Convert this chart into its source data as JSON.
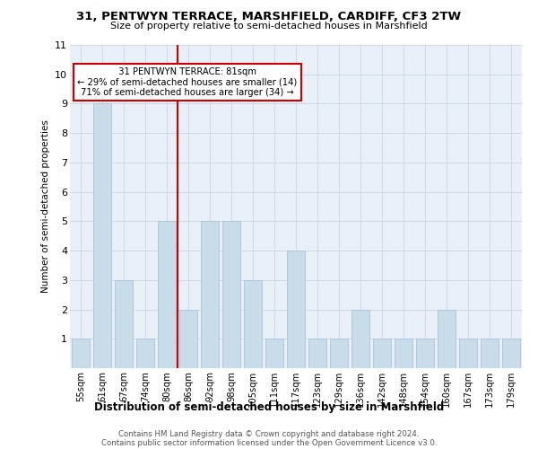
{
  "title1": "31, PENTWYN TERRACE, MARSHFIELD, CARDIFF, CF3 2TW",
  "title2": "Size of property relative to semi-detached houses in Marshfield",
  "xlabel": "Distribution of semi-detached houses by size in Marshfield",
  "ylabel": "Number of semi-detached properties",
  "categories": [
    "55sqm",
    "61sqm",
    "67sqm",
    "74sqm",
    "80sqm",
    "86sqm",
    "92sqm",
    "98sqm",
    "105sqm",
    "111sqm",
    "117sqm",
    "123sqm",
    "129sqm",
    "136sqm",
    "142sqm",
    "148sqm",
    "154sqm",
    "160sqm",
    "167sqm",
    "173sqm",
    "179sqm"
  ],
  "values": [
    1,
    9,
    3,
    1,
    5,
    2,
    5,
    5,
    3,
    1,
    4,
    1,
    1,
    2,
    1,
    1,
    1,
    2,
    1,
    1,
    1
  ],
  "bar_color": "#c9dcea",
  "bar_edgecolor": "#aac4d8",
  "vline_index": 4,
  "annotation_line1": "  31 PENTWYN TERRACE: 81sqm  ",
  "annotation_line2": "← 29% of semi-detached houses are smaller (14)",
  "annotation_line3": "71% of semi-detached houses are larger (34) →",
  "annotation_box_color": "#ffffff",
  "annotation_box_edgecolor": "#cc0000",
  "vline_color": "#cc0000",
  "grid_color": "#cdd8e8",
  "background_color": "#eaf0f8",
  "footer1": "Contains HM Land Registry data © Crown copyright and database right 2024.",
  "footer2": "Contains public sector information licensed under the Open Government Licence v3.0.",
  "ylim": [
    0,
    11
  ],
  "yticks": [
    1,
    2,
    3,
    4,
    5,
    6,
    7,
    8,
    9,
    10,
    11
  ]
}
